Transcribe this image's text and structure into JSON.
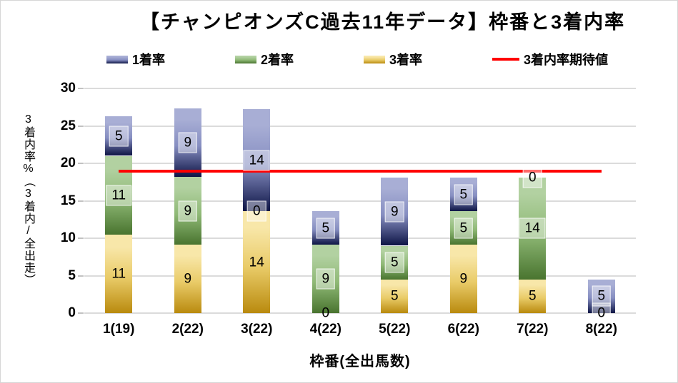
{
  "chart_data": {
    "type": "bar",
    "subtype": "stacked-columns-with-target-line",
    "title": "【チャンピオンズC過去11年データ】枠番と3着内率",
    "categories": [
      "1(19)",
      "2(22)",
      "3(22)",
      "4(22)",
      "5(22)",
      "6(22)",
      "7(22)",
      "8(22)"
    ],
    "series": [
      {
        "name": "3着率",
        "stack_order": "bottom",
        "boxed_labels": false,
        "color_top": "#F8E7A9",
        "color_mid": "#E9CB68",
        "color_bottom": "#B98A0E",
        "values": [
          10.5,
          9.1,
          13.6,
          0,
          4.5,
          9.1,
          4.5,
          0
        ],
        "labels": [
          "11",
          "9",
          "14",
          "0",
          "5",
          "9",
          "5",
          "0"
        ]
      },
      {
        "name": "2着率",
        "stack_order": "middle",
        "boxed_labels": true,
        "color_top": "#B2D1A1",
        "color_mid": "#8FB976",
        "color_bottom": "#49742F",
        "values": [
          10.5,
          9.1,
          0,
          9.1,
          4.5,
          4.5,
          13.6,
          0
        ],
        "labels": [
          "11",
          "9",
          "0",
          "9",
          "5",
          "5",
          "14",
          "0"
        ]
      },
      {
        "name": "1着率",
        "stack_order": "top",
        "boxed_labels": true,
        "color_top": "#A8AED5",
        "color_mid": "#868EC1",
        "color_bottom": "#0E1546",
        "values": [
          5.3,
          9.1,
          13.6,
          4.5,
          9.1,
          4.5,
          0,
          4.5
        ],
        "labels": [
          "5",
          "9",
          "14",
          "5",
          "9",
          "5",
          "0",
          "5"
        ]
      }
    ],
    "line": {
      "name": "3着内率期待値",
      "value": 19,
      "color": "#FF0000"
    },
    "ylim": [
      0,
      30
    ],
    "yticks": [
      30,
      25,
      20,
      15,
      10,
      5,
      0
    ],
    "ylabel": "3着内率%（3着内/全出走）",
    "xlabel": "枠番(全出馬数)",
    "grid": true,
    "legend_position": "top",
    "colors": {
      "gridline": "#DBDBDB",
      "tickmark": "#C2C2C2",
      "text": "#000000",
      "background": "#FFFFFF"
    }
  }
}
